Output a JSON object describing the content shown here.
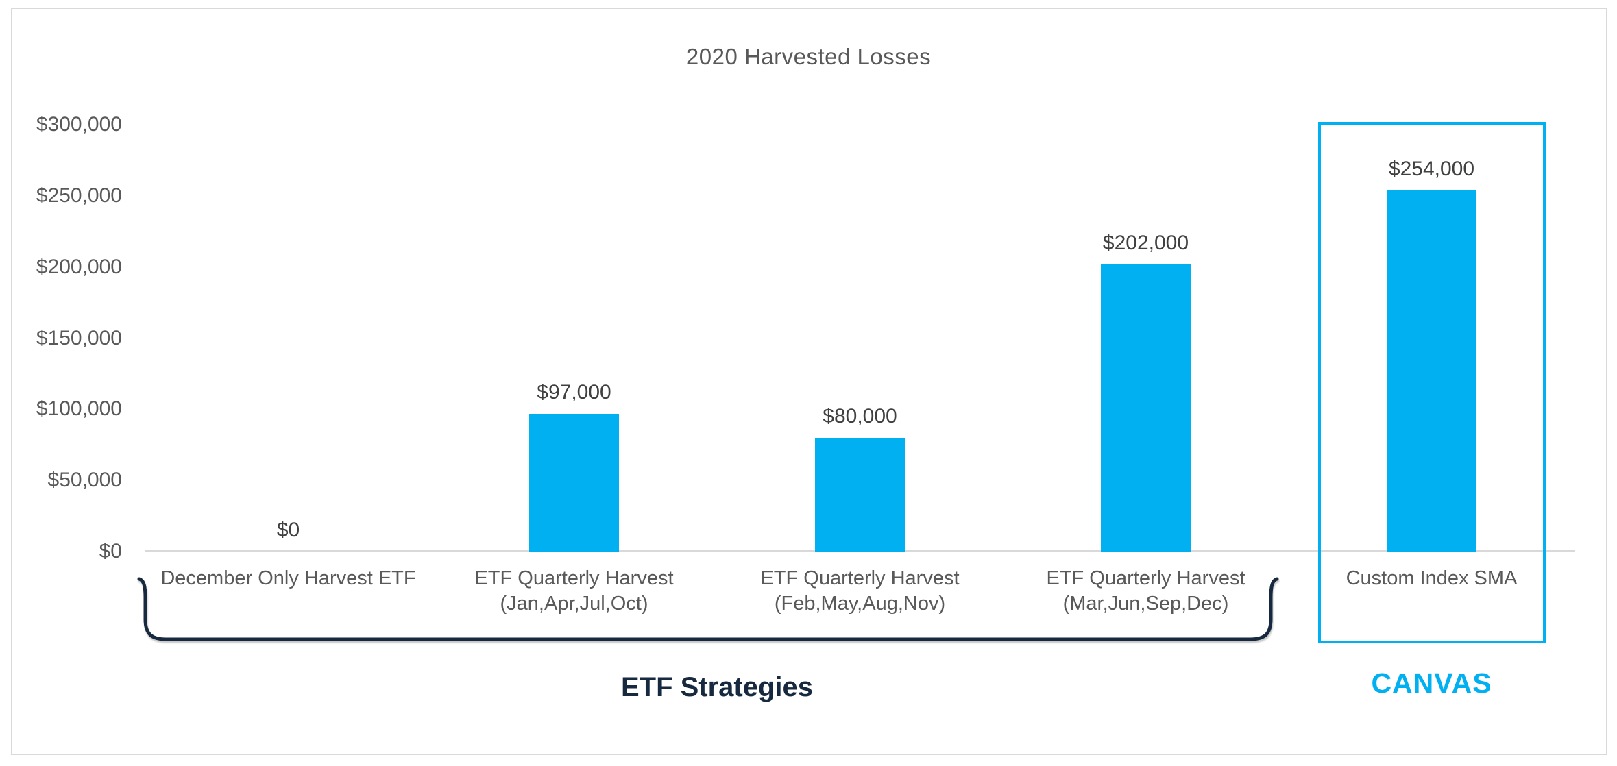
{
  "chart_data": {
    "type": "bar",
    "title": "2020 Harvested Losses",
    "categories": [
      [
        "December Only Harvest ETF"
      ],
      [
        "ETF Quarterly Harvest",
        "(Jan,Apr,Jul,Oct)"
      ],
      [
        "ETF Quarterly Harvest",
        "(Feb,May,Aug,Nov)"
      ],
      [
        "ETF Quarterly Harvest",
        "(Mar,Jun,Sep,Dec)"
      ],
      [
        "Custom Index SMA"
      ]
    ],
    "values": [
      0,
      97000,
      80000,
      202000,
      254000
    ],
    "value_labels": [
      "$0",
      "$97,000",
      "$80,000",
      "$202,000",
      "$254,000"
    ],
    "y_axis": {
      "min": 0,
      "max": 300000,
      "ticks": [
        {
          "value": 0,
          "label": "$0"
        },
        {
          "value": 50000,
          "label": "$50,000"
        },
        {
          "value": 100000,
          "label": "$100,000"
        },
        {
          "value": 150000,
          "label": "$150,000"
        },
        {
          "value": 200000,
          "label": "$200,000"
        },
        {
          "value": 250000,
          "label": "$250,000"
        },
        {
          "value": 300000,
          "label": "$300,000"
        }
      ]
    },
    "xlabel": "",
    "ylabel": "",
    "gridlines": false,
    "legend": "none",
    "bar_color": "#00B0F0",
    "axis_line_color": "#d9d9d9"
  },
  "annotations": {
    "etf_group": {
      "label": "ETF Strategies",
      "covers_categories": [
        0,
        3
      ],
      "brace_color": "#17293E",
      "label_color": "#17293E"
    },
    "canvas_group": {
      "label": "CANVAS",
      "covers_categories": [
        4,
        4
      ],
      "box_color": "#00B0F0",
      "label_color": "#00B0F0"
    }
  }
}
